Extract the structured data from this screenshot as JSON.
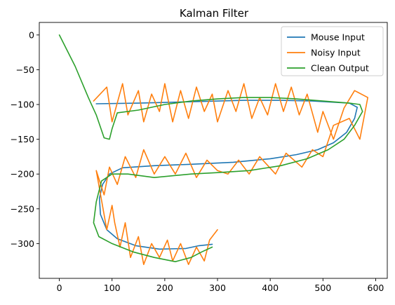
{
  "chart_data": {
    "type": "line",
    "title": "Kalman Filter",
    "xlabel": "",
    "ylabel": "",
    "xlim": [
      -38,
      622
    ],
    "ylim": [
      -350,
      18
    ],
    "xticks": [
      0,
      100,
      200,
      300,
      400,
      500,
      600
    ],
    "yticks": [
      0,
      -50,
      -100,
      -150,
      -200,
      -250,
      -300
    ],
    "xtick_labels": [
      "0",
      "100",
      "200",
      "300",
      "400",
      "500",
      "600"
    ],
    "ytick_labels": [
      "0",
      "−50",
      "−100",
      "−150",
      "−200",
      "−250",
      "−300"
    ],
    "grid": false,
    "legend_position": "top-right",
    "series": [
      {
        "name": "Mouse Input",
        "color": "#1f77b4",
        "points": [
          [
            70,
            -99
          ],
          [
            150,
            -98
          ],
          [
            250,
            -96
          ],
          [
            350,
            -94
          ],
          [
            420,
            -94
          ],
          [
            480,
            -95
          ],
          [
            550,
            -98
          ],
          [
            565,
            -104
          ],
          [
            560,
            -120
          ],
          [
            545,
            -140
          ],
          [
            520,
            -155
          ],
          [
            490,
            -165
          ],
          [
            450,
            -172
          ],
          [
            400,
            -178
          ],
          [
            330,
            -183
          ],
          [
            250,
            -186
          ],
          [
            180,
            -188
          ],
          [
            120,
            -191
          ],
          [
            95,
            -200
          ],
          [
            82,
            -215
          ],
          [
            76,
            -235
          ],
          [
            78,
            -258
          ],
          [
            90,
            -280
          ],
          [
            110,
            -293
          ],
          [
            145,
            -303
          ],
          [
            190,
            -308
          ],
          [
            240,
            -307
          ],
          [
            265,
            -303
          ],
          [
            290,
            -301
          ]
        ]
      },
      {
        "name": "Noisy Input",
        "color": "#ff7f0e",
        "points": [
          [
            65,
            -95
          ],
          [
            90,
            -75
          ],
          [
            100,
            -125
          ],
          [
            120,
            -70
          ],
          [
            130,
            -115
          ],
          [
            150,
            -80
          ],
          [
            160,
            -125
          ],
          [
            175,
            -85
          ],
          [
            190,
            -110
          ],
          [
            200,
            -70
          ],
          [
            215,
            -125
          ],
          [
            230,
            -80
          ],
          [
            245,
            -120
          ],
          [
            260,
            -75
          ],
          [
            275,
            -110
          ],
          [
            290,
            -85
          ],
          [
            300,
            -125
          ],
          [
            320,
            -80
          ],
          [
            335,
            -110
          ],
          [
            350,
            -70
          ],
          [
            365,
            -120
          ],
          [
            380,
            -90
          ],
          [
            395,
            -115
          ],
          [
            410,
            -70
          ],
          [
            425,
            -110
          ],
          [
            440,
            -75
          ],
          [
            455,
            -115
          ],
          [
            470,
            -85
          ],
          [
            490,
            -140
          ],
          [
            500,
            -110
          ],
          [
            520,
            -150
          ],
          [
            540,
            -105
          ],
          [
            560,
            -80
          ],
          [
            585,
            -90
          ],
          [
            570,
            -150
          ],
          [
            550,
            -120
          ],
          [
            520,
            -130
          ],
          [
            500,
            -175
          ],
          [
            480,
            -165
          ],
          [
            460,
            -190
          ],
          [
            430,
            -170
          ],
          [
            410,
            -200
          ],
          [
            380,
            -175
          ],
          [
            360,
            -200
          ],
          [
            340,
            -180
          ],
          [
            320,
            -200
          ],
          [
            300,
            -195
          ],
          [
            280,
            -180
          ],
          [
            260,
            -205
          ],
          [
            240,
            -170
          ],
          [
            220,
            -200
          ],
          [
            200,
            -175
          ],
          [
            180,
            -200
          ],
          [
            160,
            -165
          ],
          [
            145,
            -205
          ],
          [
            125,
            -175
          ],
          [
            110,
            -215
          ],
          [
            95,
            -190
          ],
          [
            85,
            -230
          ],
          [
            70,
            -195
          ],
          [
            90,
            -280
          ],
          [
            100,
            -245
          ],
          [
            105,
            -270
          ],
          [
            115,
            -305
          ],
          [
            125,
            -270
          ],
          [
            135,
            -320
          ],
          [
            150,
            -290
          ],
          [
            160,
            -330
          ],
          [
            175,
            -300
          ],
          [
            190,
            -320
          ],
          [
            205,
            -295
          ],
          [
            215,
            -325
          ],
          [
            230,
            -300
          ],
          [
            245,
            -330
          ],
          [
            260,
            -305
          ],
          [
            275,
            -325
          ],
          [
            285,
            -295
          ],
          [
            300,
            -280
          ]
        ]
      },
      {
        "name": "Clean Output",
        "color": "#2ca02c",
        "points": [
          [
            0,
            0
          ],
          [
            30,
            -45
          ],
          [
            55,
            -90
          ],
          [
            70,
            -115
          ],
          [
            85,
            -148
          ],
          [
            95,
            -150
          ],
          [
            100,
            -135
          ],
          [
            110,
            -112
          ],
          [
            150,
            -108
          ],
          [
            200,
            -100
          ],
          [
            250,
            -95
          ],
          [
            300,
            -92
          ],
          [
            350,
            -90
          ],
          [
            400,
            -90
          ],
          [
            450,
            -92
          ],
          [
            500,
            -95
          ],
          [
            550,
            -98
          ],
          [
            570,
            -100
          ],
          [
            575,
            -110
          ],
          [
            560,
            -130
          ],
          [
            540,
            -150
          ],
          [
            510,
            -165
          ],
          [
            470,
            -178
          ],
          [
            420,
            -188
          ],
          [
            360,
            -195
          ],
          [
            300,
            -198
          ],
          [
            250,
            -200
          ],
          [
            180,
            -205
          ],
          [
            130,
            -200
          ],
          [
            100,
            -200
          ],
          [
            80,
            -210
          ],
          [
            70,
            -240
          ],
          [
            65,
            -270
          ],
          [
            75,
            -290
          ],
          [
            100,
            -300
          ],
          [
            140,
            -312
          ],
          [
            180,
            -320
          ],
          [
            220,
            -326
          ],
          [
            250,
            -320
          ],
          [
            270,
            -312
          ],
          [
            290,
            -305
          ]
        ]
      }
    ]
  }
}
